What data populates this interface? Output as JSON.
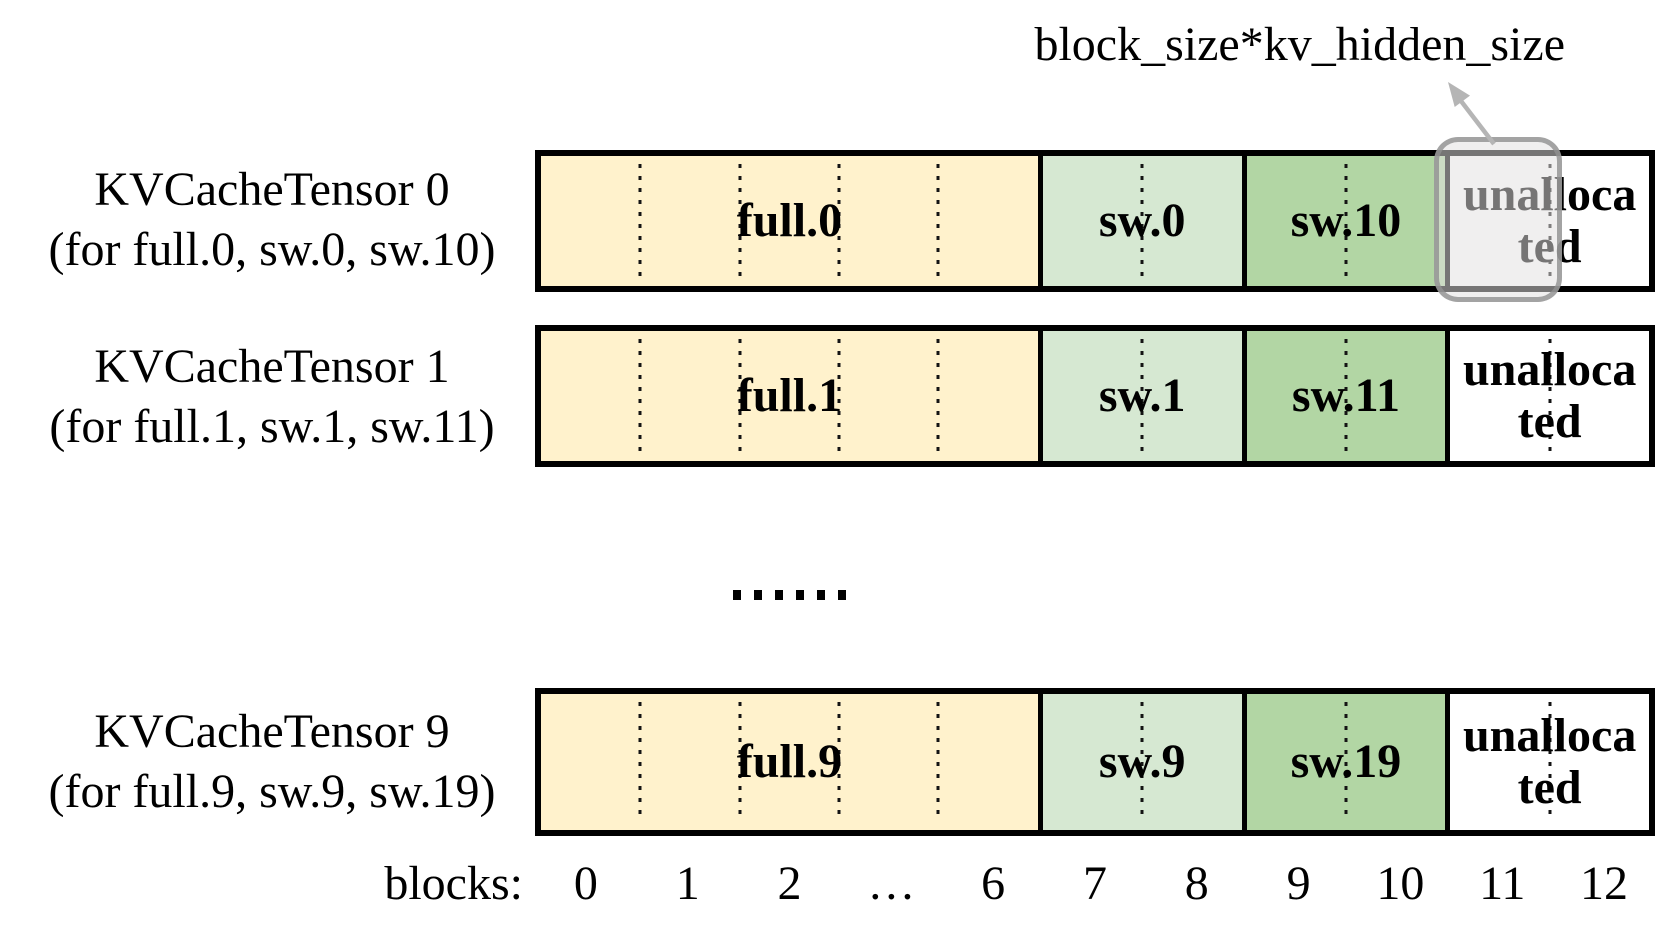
{
  "diagram": {
    "annotation": "block_size*kv_hidden_size",
    "rows": [
      {
        "title": "KVCacheTensor 0",
        "subtitle": "(for full.0, sw.0, sw.10)",
        "segments": [
          {
            "label": "full.0",
            "type": "full",
            "block_range": "0-6"
          },
          {
            "label": "sw.0",
            "type": "sw-even",
            "block_range": "7-8"
          },
          {
            "label": "sw.10",
            "type": "sw-odd",
            "block_range": "9-10"
          },
          {
            "label": "unallocated",
            "type": "unallocated",
            "block_range": "11-12"
          }
        ]
      },
      {
        "title": "KVCacheTensor 1",
        "subtitle": "(for full.1, sw.1, sw.11)",
        "segments": [
          {
            "label": "full.1",
            "type": "full",
            "block_range": "0-6"
          },
          {
            "label": "sw.1",
            "type": "sw-even",
            "block_range": "7-8"
          },
          {
            "label": "sw.11",
            "type": "sw-odd",
            "block_range": "9-10"
          },
          {
            "label": "unallocated",
            "type": "unallocated",
            "block_range": "11-12"
          }
        ]
      },
      {
        "title": "KVCacheTensor 9",
        "subtitle": "(for full.9, sw.9, sw.19)",
        "segments": [
          {
            "label": "full.9",
            "type": "full",
            "block_range": "0-6"
          },
          {
            "label": "sw.9",
            "type": "sw-even",
            "block_range": "7-8"
          },
          {
            "label": "sw.19",
            "type": "sw-odd",
            "block_range": "9-10"
          },
          {
            "label": "unallocated",
            "type": "unallocated",
            "block_range": "11-12"
          }
        ]
      }
    ],
    "continuation": {
      "glyph": "......",
      "count": 6
    },
    "axis": {
      "label": "blocks:",
      "ticks": [
        "0",
        "1",
        "2",
        "…",
        "6",
        "7",
        "8",
        "9",
        "10",
        "11",
        "12"
      ]
    },
    "highlight": {
      "applies_to": "KVCacheTensor 0",
      "block": "11"
    },
    "colors": {
      "full": "#FFF2CC",
      "sw_even": "#D6E8D2",
      "sw_odd": "#B2D6A4",
      "unallocated": "#FFFFFF",
      "highlight_fill": "rgba(226,225,225,0.52)",
      "highlight_border": "rgba(145,145,145,0.8)",
      "arrow": "#B5B5B5"
    }
  }
}
